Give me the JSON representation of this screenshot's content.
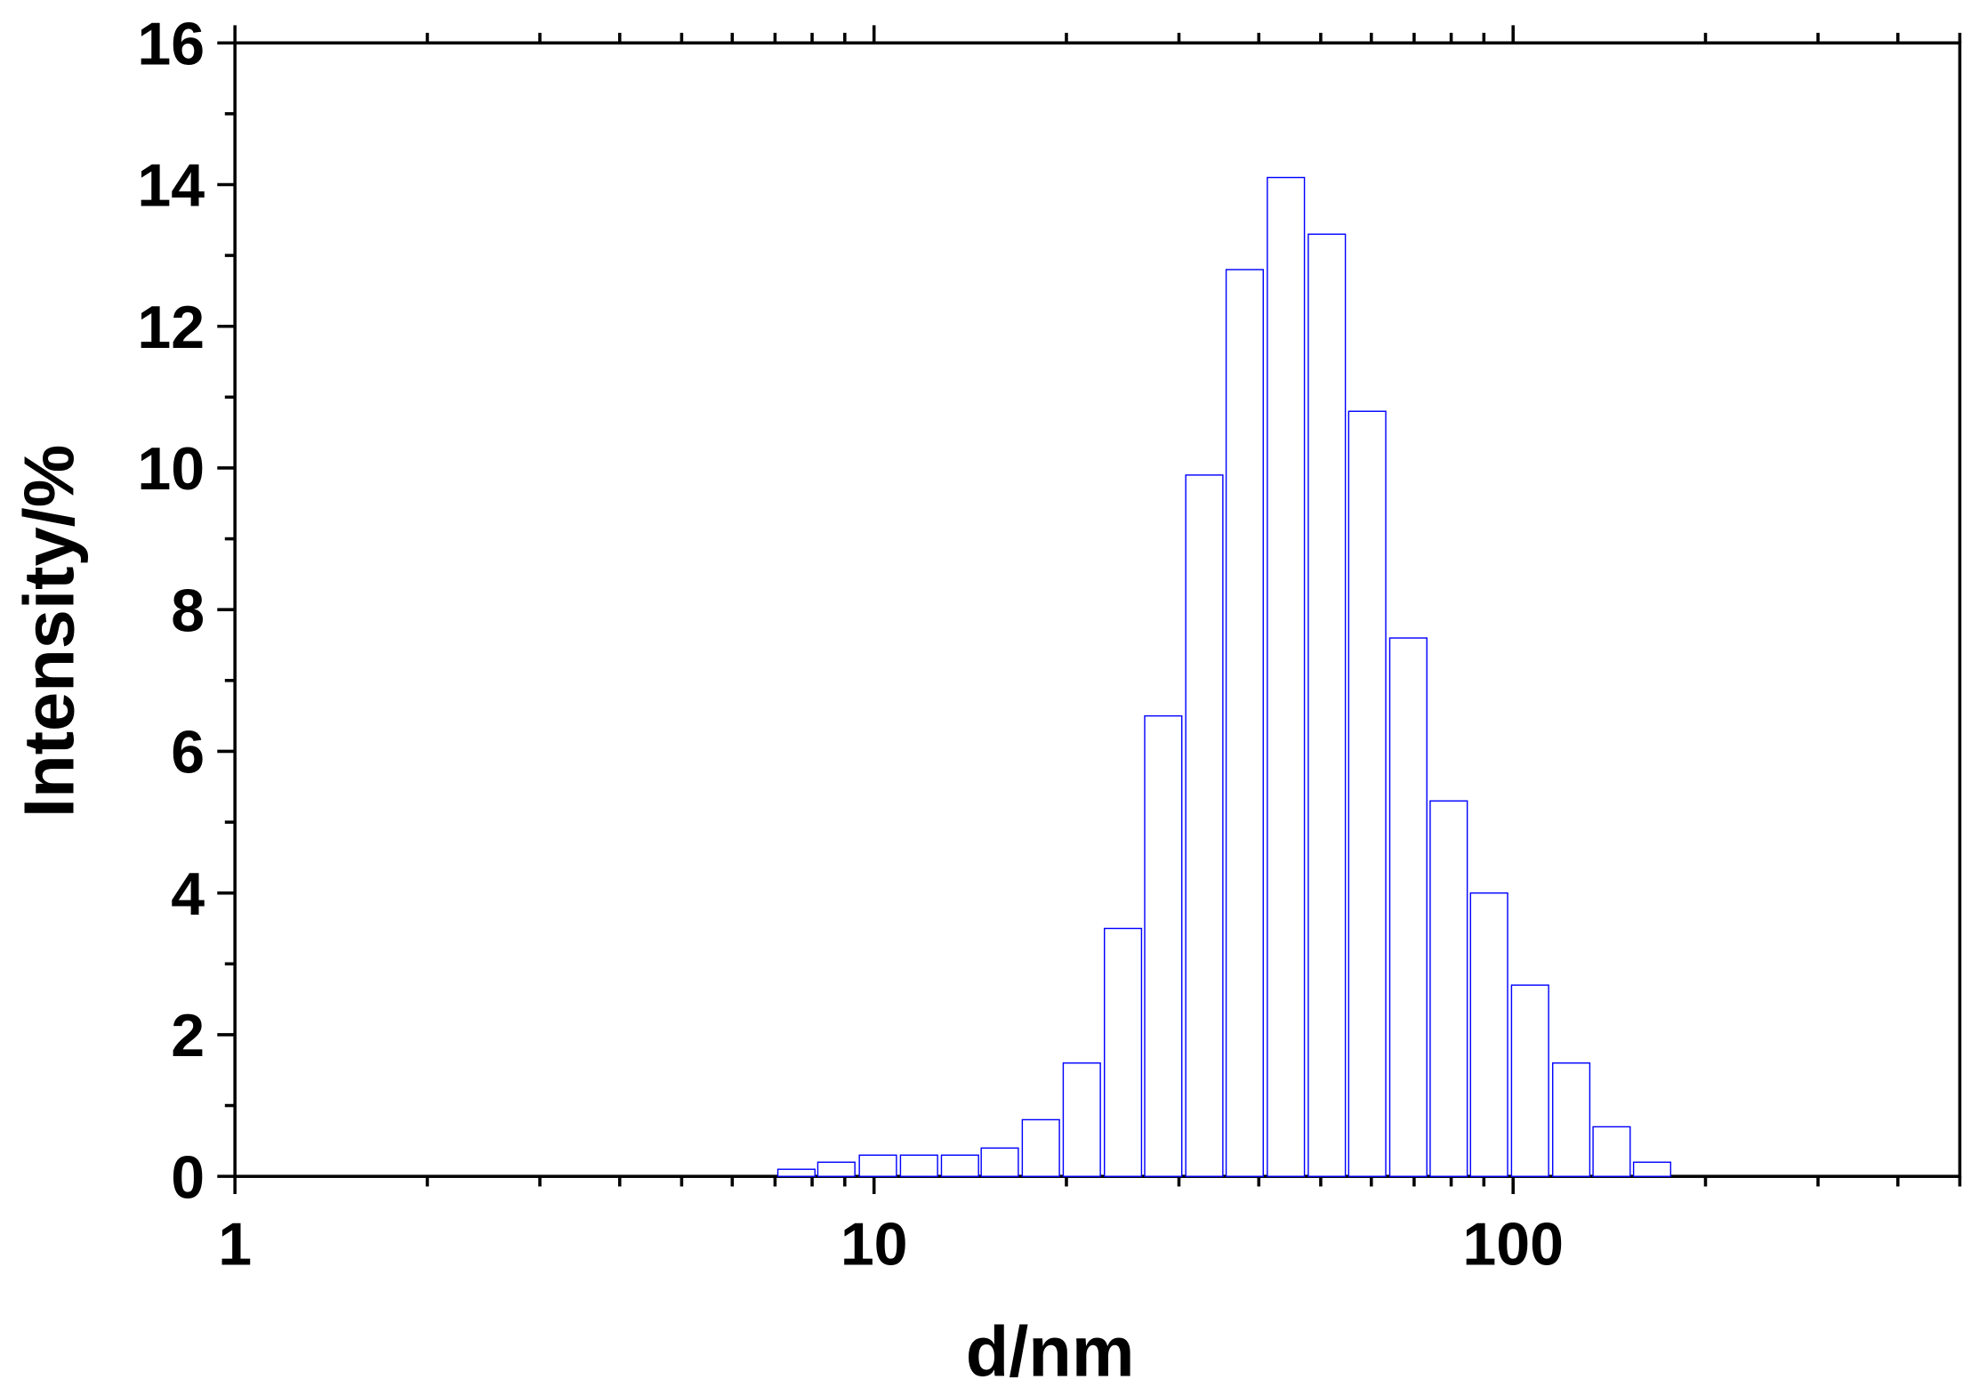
{
  "chart_data": {
    "type": "bar",
    "x_label": "d/nm",
    "y_label": "Intensity/%",
    "xscale": "log",
    "x": [
      7.56,
      8.73,
      10.14,
      11.76,
      13.63,
      15.73,
      18.24,
      21.14,
      24.52,
      28.35,
      32.87,
      38.02,
      44.1,
      51.11,
      59.12,
      68.55,
      79.29,
      91.7,
      106.3,
      123.3,
      142.6,
      165.0
    ],
    "values": [
      0.1,
      0.2,
      0.3,
      0.3,
      0.3,
      0.4,
      0.8,
      1.6,
      3.5,
      6.5,
      9.9,
      12.8,
      14.1,
      13.3,
      10.8,
      7.6,
      5.3,
      4.0,
      2.7,
      1.6,
      0.7,
      0.2
    ],
    "color": "#0000ff",
    "xlim": [
      1,
      500
    ],
    "xticks": [
      1,
      10,
      100
    ],
    "xminorticks": [
      2,
      3,
      4,
      5,
      6,
      7,
      8,
      9,
      20,
      30,
      40,
      50,
      60,
      70,
      80,
      90,
      200,
      300,
      400,
      500
    ],
    "ylim": [
      0,
      16
    ],
    "yticks": [
      0,
      2,
      4,
      6,
      8,
      10,
      12,
      14,
      16
    ],
    "yminorticks": [
      1,
      3,
      5,
      7,
      9,
      11,
      13,
      15
    ]
  }
}
